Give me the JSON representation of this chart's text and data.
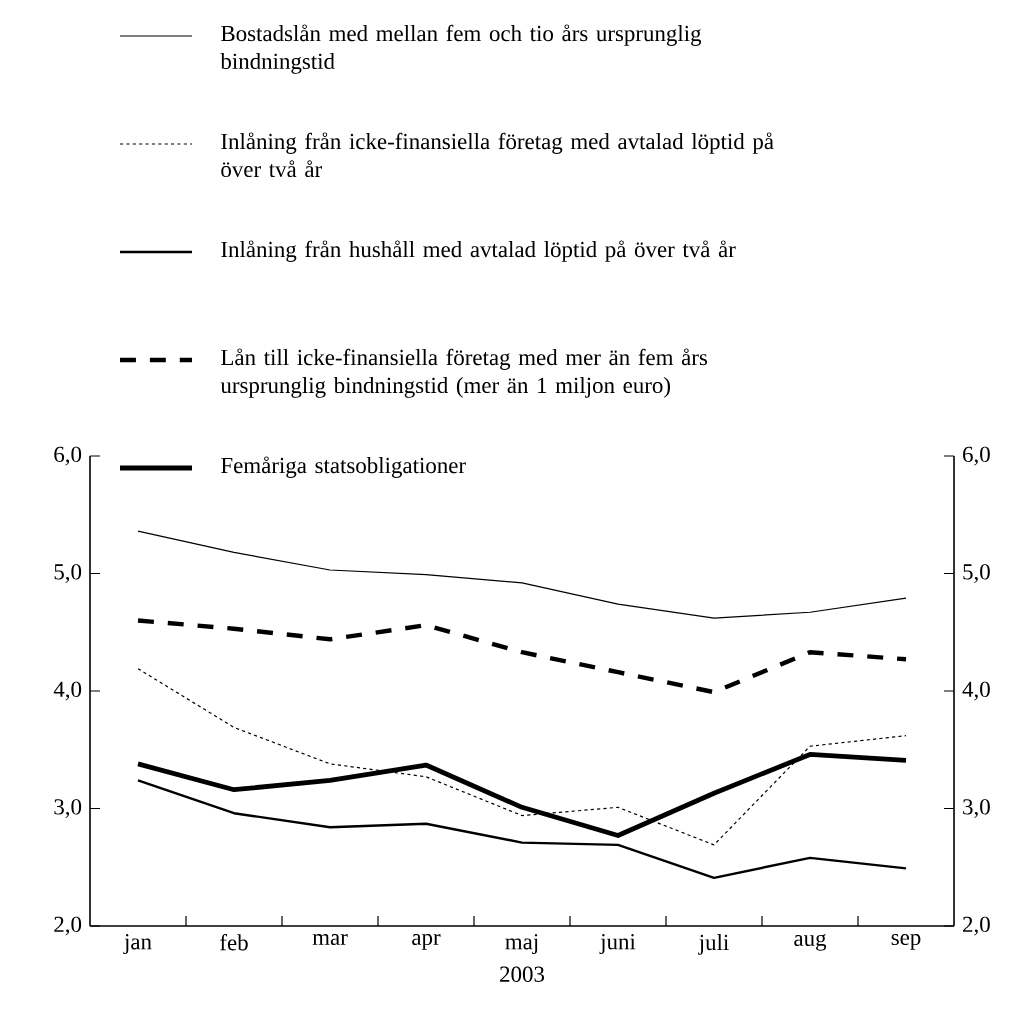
{
  "chart_data": {
    "type": "line",
    "xlabel": "2003",
    "categories": [
      "jan",
      "feb",
      "mar",
      "apr",
      "maj",
      "juni",
      "juli",
      "aug",
      "sep"
    ],
    "series": [
      {
        "name": "Bostadslån med mellan fem och tio års ursprunglig bindningstid",
        "color": "#000000",
        "line_style": "solid",
        "values": [
          5.36,
          5.18,
          5.03,
          4.99,
          4.92,
          4.74,
          4.62,
          4.67,
          4.79
        ]
      },
      {
        "name": "Inlåning från icke-finansiella företag med avtalad löptid på över två år",
        "color": "#000000",
        "line_style": "dotted",
        "values": [
          4.19,
          3.69,
          3.38,
          3.27,
          2.94,
          3.01,
          2.69,
          3.53,
          3.62
        ]
      },
      {
        "name": "Inlåning från hushåll med avtalad löptid på över två år",
        "color": "#000000",
        "line_style": "solid",
        "values": [
          3.24,
          2.96,
          2.84,
          2.87,
          2.71,
          2.69,
          2.41,
          2.58,
          2.49
        ]
      },
      {
        "name": "Lån till icke-finansiella företag med mer än fem års ursprunglig bindningstid (mer än 1 miljon euro)",
        "color": "#000000",
        "line_style": "dashed",
        "values": [
          4.6,
          4.53,
          4.44,
          4.56,
          4.33,
          4.16,
          3.99,
          4.33,
          4.27
        ]
      },
      {
        "name": "Femåriga statsobligationer",
        "color": "#000000",
        "line_style": "solid",
        "values": [
          3.38,
          3.16,
          3.24,
          3.37,
          3.01,
          2.77,
          3.13,
          3.46,
          3.41
        ]
      }
    ],
    "ylim": [
      2,
      6
    ],
    "yticks": [
      {
        "value": 2,
        "label": "2,0"
      },
      {
        "value": 3,
        "label": "3,0"
      },
      {
        "value": 4,
        "label": "4,0"
      },
      {
        "value": 5,
        "label": "5,0"
      },
      {
        "value": 6,
        "label": "6,0"
      }
    ],
    "y2lim": [
      2,
      6
    ],
    "y2ticks": [
      {
        "value": 2,
        "label": "2,0"
      },
      {
        "value": 3,
        "label": "3,0"
      },
      {
        "value": 4,
        "label": "4,0"
      },
      {
        "value": 5,
        "label": "5,0"
      },
      {
        "value": 6,
        "label": "6,0"
      }
    ],
    "legend": "top",
    "grid": false,
    "marker": "none"
  }
}
